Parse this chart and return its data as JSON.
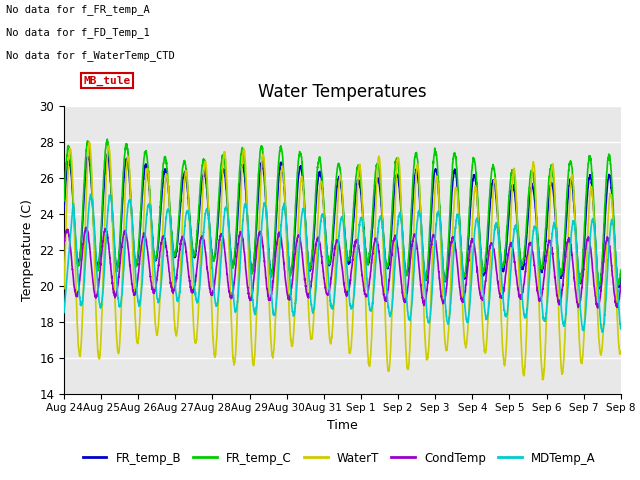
{
  "title": "Water Temperatures",
  "xlabel": "Time",
  "ylabel": "Temperature (C)",
  "ylim": [
    14,
    30
  ],
  "background_color": "#e8e8e8",
  "grid_color": "white",
  "annotations": [
    "No data for f_FR_temp_A",
    "No data for f_FD_Temp_1",
    "No data for f_WaterTemp_CTD"
  ],
  "mb_tule_label": "MB_tule",
  "mb_tule_color": "#cc0000",
  "series": {
    "FR_temp_B": {
      "color": "#0000cc",
      "linewidth": 1.2
    },
    "FR_temp_C": {
      "color": "#00cc00",
      "linewidth": 1.2
    },
    "WaterT": {
      "color": "#cccc00",
      "linewidth": 1.2
    },
    "CondTemp": {
      "color": "#9900cc",
      "linewidth": 1.2
    },
    "MDTemp_A": {
      "color": "#00cccc",
      "linewidth": 1.2
    }
  },
  "xtick_labels": [
    "Aug 24",
    "Aug 25",
    "Aug 26",
    "Aug 27",
    "Aug 28",
    "Aug 29",
    "Aug 30",
    "Aug 31",
    "Sep 1",
    "Sep 2",
    "Sep 3",
    "Sep 4",
    "Sep 5",
    "Sep 6",
    "Sep 7",
    "Sep 8"
  ],
  "ytick_labels": [
    "14",
    "16",
    "18",
    "20",
    "22",
    "24",
    "26",
    "28",
    "30"
  ],
  "ytick_values": [
    14,
    16,
    18,
    20,
    22,
    24,
    26,
    28,
    30
  ],
  "figsize": [
    6.4,
    4.8
  ],
  "dpi": 100
}
